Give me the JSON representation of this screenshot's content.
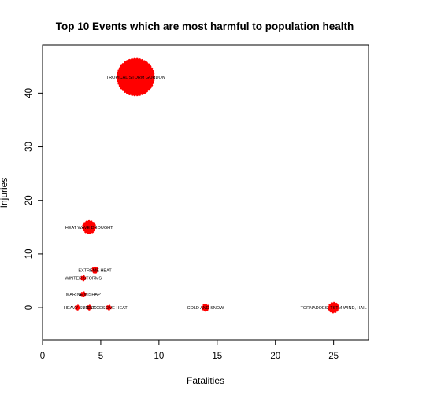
{
  "chart_data": {
    "type": "scatter",
    "title": "Top 10 Events which are most harmful to population health",
    "xlabel": "Fatalities",
    "ylabel": "Injuries",
    "xlim": [
      0,
      28
    ],
    "ylim": [
      -6,
      49
    ],
    "xticks": [
      0,
      5,
      10,
      15,
      20,
      25
    ],
    "yticks": [
      0,
      10,
      20,
      30,
      40
    ],
    "grid": false,
    "legend": "none",
    "point_color": "#ff0000",
    "series": [
      {
        "points": [
          {
            "label": "TROPICAL STORM GORDON",
            "x": 8,
            "y": 43,
            "size": 43
          },
          {
            "label": "HEAT WAVE DROUGHT",
            "x": 4,
            "y": 15,
            "size": 15
          },
          {
            "label": "EXTREME HEAT",
            "x": 4.5,
            "y": 7,
            "size": 7
          },
          {
            "label": "WINTER STORMS",
            "x": 3.5,
            "y": 5.5,
            "size": 5.5
          },
          {
            "label": "MARINE MISHAP",
            "x": 3.5,
            "y": 2.5,
            "size": 2.5
          },
          {
            "label": "HEAVY SURF",
            "x": 3,
            "y": 0,
            "size": 1.2
          },
          {
            "label": "HEAT",
            "x": 4,
            "y": 0,
            "size": 1.8
          },
          {
            "label": "EXCESSIVE HEAT",
            "x": 5.7,
            "y": 0,
            "size": 2.8
          },
          {
            "label": "COLD AND SNOW",
            "x": 14,
            "y": 0,
            "size": 8
          },
          {
            "label": "TORNADOES, TSTM WIND, HAIL",
            "x": 25,
            "y": 0,
            "size": 12
          }
        ]
      }
    ]
  }
}
